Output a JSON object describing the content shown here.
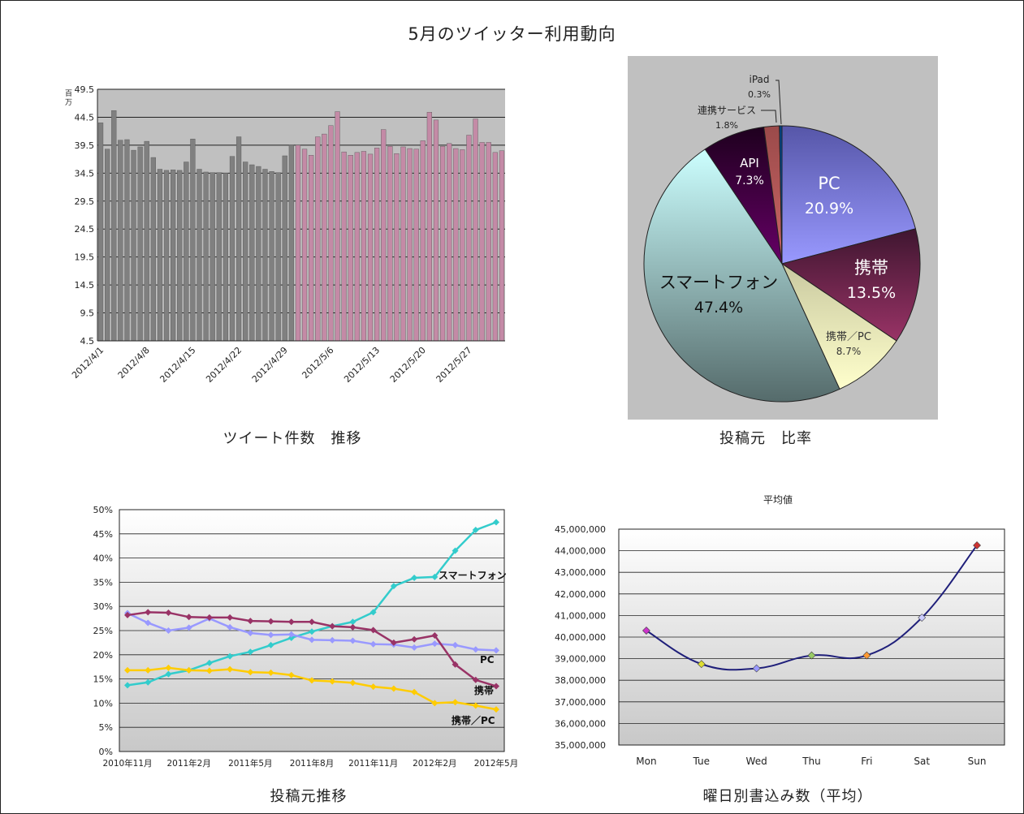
{
  "page": {
    "title": "5月のツイッター利用動向"
  },
  "captions": {
    "tweets": "ツイート件数　推移",
    "source_ratio": "投稿元　比率",
    "source_trend": "投稿元推移",
    "weekday": "曜日別書込み数（平均）"
  },
  "chart_data": [
    {
      "id": "tweet-count",
      "type": "bar",
      "title": "",
      "ylabel": "百万",
      "ylim": [
        4.5,
        49.5
      ],
      "yticks": [
        "4.5",
        "9.5",
        "14.5",
        "19.5",
        "24.5",
        "29.5",
        "34.5",
        "39.5",
        "44.5",
        "49.5"
      ],
      "xtick_labels": [
        "2012/4/1",
        "2012/4/8",
        "2012/4/15",
        "2012/4/22",
        "2012/4/29",
        "2012/5/6",
        "2012/5/13",
        "2012/5/20",
        "2012/5/27"
      ],
      "series": [
        {
          "period": "2012-04",
          "color": "#808080",
          "values": [
            43.5,
            38.8,
            45.7,
            40.4,
            40.5,
            38.6,
            39.2,
            40.2,
            37.3,
            35.2,
            35.0,
            35.1,
            35.0,
            36.5,
            40.6,
            35.2,
            34.7,
            34.6,
            34.6,
            34.5,
            37.5,
            41.0,
            36.5,
            36.0,
            35.7,
            35.2,
            34.8,
            34.6,
            37.6,
            39.5
          ]
        },
        {
          "period": "2012-05",
          "color": "#c48aa6",
          "values": [
            39.5,
            38.8,
            37.7,
            41.0,
            41.5,
            43.0,
            45.5,
            38.3,
            37.7,
            38.2,
            38.4,
            37.9,
            39.0,
            42.3,
            39.3,
            38.0,
            39.2,
            38.9,
            38.8,
            40.3,
            45.4,
            44.0,
            39.3,
            39.8,
            38.9,
            38.7,
            41.3,
            44.2,
            40.0,
            40.0,
            38.2,
            38.5
          ]
        }
      ]
    },
    {
      "id": "source-ratio",
      "type": "pie",
      "slices": [
        {
          "label": "PC",
          "value": 20.9,
          "text": "20.9%",
          "color": "#9999ff"
        },
        {
          "label": "携帯",
          "value": 13.5,
          "text": "13.5%",
          "color": "#993366"
        },
        {
          "label": "携帯／PC",
          "value": 8.7,
          "text": "8.7%",
          "color": "#ffffcc"
        },
        {
          "label": "スマートフォン",
          "value": 47.4,
          "text": "47.4%",
          "color": "#a6c8c4"
        },
        {
          "label": "API",
          "value": 7.3,
          "text": "7.3%",
          "color": "#660066"
        },
        {
          "label": "連携サービス",
          "value": 1.8,
          "text": "1.8%",
          "color": "#cc6666"
        },
        {
          "label": "iPad",
          "value": 0.3,
          "text": "0.3%",
          "color": "#0066cc"
        }
      ]
    },
    {
      "id": "source-trend",
      "type": "line",
      "title": "",
      "ylim": [
        0,
        50
      ],
      "yticks": [
        "0%",
        "5%",
        "10%",
        "15%",
        "20%",
        "25%",
        "30%",
        "35%",
        "40%",
        "45%",
        "50%"
      ],
      "x": [
        "2010年11月",
        "2010年12月",
        "2011年1月",
        "2011年2月",
        "2011年3月",
        "2011年4月",
        "2011年5月",
        "2011年6月",
        "2011年7月",
        "2011年8月",
        "2011年9月",
        "2011年10月",
        "2011年11月",
        "2011年12月",
        "2012年1月",
        "2012年2月",
        "2012年3月",
        "2012年4月",
        "2012年5月"
      ],
      "xtick_labels": [
        "2010年11月",
        "2011年2月",
        "2011年5月",
        "2011年8月",
        "2011年11月",
        "2012年2月",
        "2012年5月"
      ],
      "series": [
        {
          "name": "スマートフォン",
          "color": "#33cccc",
          "values": [
            13.7,
            14.3,
            16.0,
            16.8,
            18.3,
            19.7,
            20.6,
            22.0,
            23.5,
            24.8,
            25.9,
            26.8,
            28.8,
            34.2,
            35.9,
            36.1,
            41.5,
            45.8,
            47.4
          ]
        },
        {
          "name": "PC",
          "color": "#9999ff",
          "values": [
            28.6,
            26.6,
            25.0,
            25.6,
            27.5,
            25.7,
            24.5,
            24.1,
            24.2,
            23.1,
            23.0,
            22.9,
            22.2,
            22.1,
            21.5,
            22.3,
            22.0,
            21.1,
            20.9
          ]
        },
        {
          "name": "携帯",
          "color": "#993366",
          "values": [
            28.2,
            28.8,
            28.7,
            27.8,
            27.7,
            27.7,
            27.0,
            26.9,
            26.8,
            26.8,
            25.9,
            25.7,
            25.1,
            22.5,
            23.2,
            24.0,
            18.0,
            14.8,
            13.5
          ]
        },
        {
          "name": "携帯／PC",
          "color": "#ffcc00",
          "values": [
            16.8,
            16.8,
            17.3,
            16.8,
            16.7,
            17.0,
            16.4,
            16.3,
            15.8,
            14.7,
            14.5,
            14.2,
            13.4,
            13.0,
            12.3,
            10.0,
            10.2,
            9.5,
            8.7
          ]
        }
      ]
    },
    {
      "id": "weekday-average",
      "type": "line",
      "title": "平均値",
      "ylim": [
        35000000,
        45000000
      ],
      "yticks": [
        "35,000,000",
        "36,000,000",
        "37,000,000",
        "38,000,000",
        "39,000,000",
        "40,000,000",
        "41,000,000",
        "42,000,000",
        "43,000,000",
        "44,000,000",
        "45,000,000"
      ],
      "categories": [
        "Mon",
        "Tue",
        "Wed",
        "Thu",
        "Fri",
        "Sat",
        "Sun"
      ],
      "values": [
        40300000,
        38750000,
        38550000,
        39150000,
        39150000,
        40900000,
        44250000
      ],
      "marker_colors": [
        "#cc33cc",
        "#dddd33",
        "#9999ff",
        "#99cc66",
        "#ff9933",
        "#ccccff",
        "#cc3333"
      ],
      "line_color": "#1f1f7a"
    }
  ]
}
